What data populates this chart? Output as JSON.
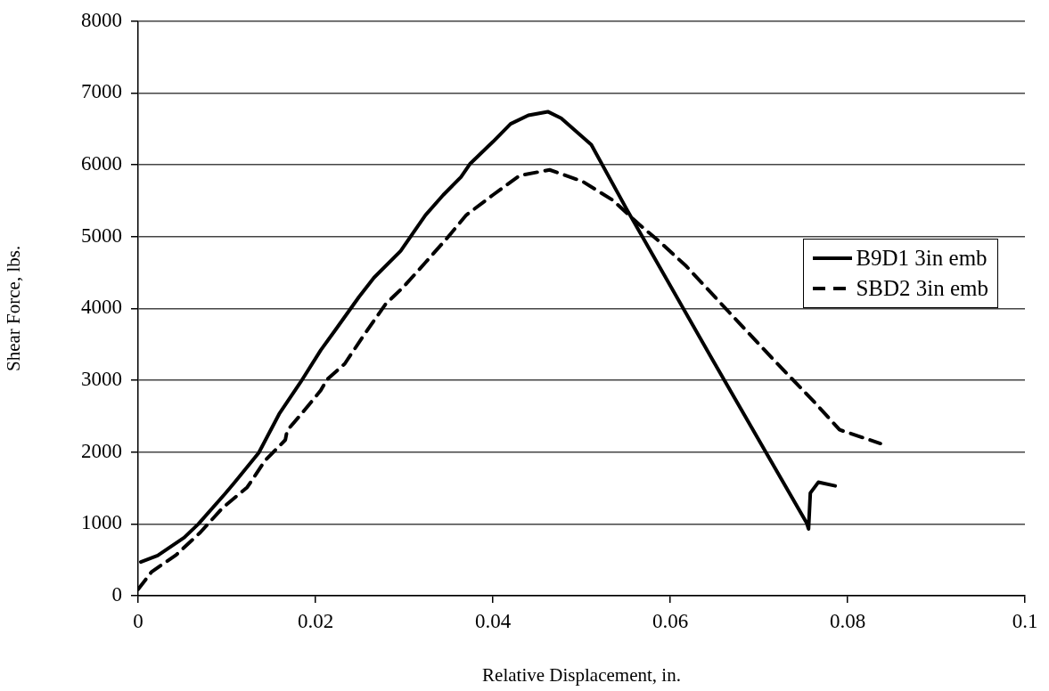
{
  "chart_data": {
    "type": "line",
    "xlabel": "Relative Displacement, in.",
    "ylabel": "Shear Force, lbs.",
    "xlim": [
      0,
      0.1
    ],
    "xticks": [
      0,
      0.02,
      0.04,
      0.06,
      0.08,
      0.1
    ],
    "ylim": [
      0,
      8000
    ],
    "yticks": [
      0,
      1000,
      2000,
      3000,
      4000,
      5000,
      6000,
      7000,
      8000
    ],
    "grid": "y",
    "legend": "right",
    "marker": "none",
    "series": [
      {
        "name": "B9D1 3in emb",
        "color": "#000000",
        "line_style": "solid",
        "x": [
          0.0003,
          0.0022,
          0.0052,
          0.0068,
          0.0098,
          0.0109,
          0.0136,
          0.0159,
          0.0183,
          0.0206,
          0.0223,
          0.0249,
          0.0266,
          0.0296,
          0.0324,
          0.0344,
          0.0364,
          0.0374,
          0.04,
          0.042,
          0.044,
          0.0462,
          0.0477,
          0.0511,
          0.0551,
          0.0648,
          0.0754,
          0.0756,
          0.0758,
          0.0767,
          0.0786
        ],
        "values": [
          470,
          560,
          810,
          1000,
          1420,
          1580,
          1990,
          2530,
          2970,
          3420,
          3710,
          4160,
          4430,
          4800,
          5300,
          5580,
          5830,
          6010,
          6320,
          6570,
          6690,
          6740,
          6650,
          6280,
          5380,
          3280,
          1010,
          930,
          1430,
          1580,
          1530
        ]
      },
      {
        "name": "SBD2 3in emb",
        "color": "#000000",
        "line_style": "dashed",
        "x": [
          0,
          0.0015,
          0.0043,
          0.007,
          0.0095,
          0.0123,
          0.0143,
          0.0166,
          0.0168,
          0.0186,
          0.0206,
          0.0213,
          0.0233,
          0.0253,
          0.0279,
          0.03,
          0.0324,
          0.0347,
          0.037,
          0.04,
          0.043,
          0.0464,
          0.0501,
          0.0535,
          0.0565,
          0.0588,
          0.0618,
          0.0667,
          0.0717,
          0.076,
          0.0791,
          0.0837
        ],
        "values": [
          90,
          330,
          570,
          880,
          1220,
          1510,
          1880,
          2170,
          2300,
          2560,
          2860,
          3010,
          3230,
          3600,
          4060,
          4310,
          4640,
          4960,
          5300,
          5580,
          5850,
          5930,
          5770,
          5510,
          5170,
          4930,
          4590,
          3940,
          3280,
          2730,
          2310,
          2120
        ]
      }
    ]
  }
}
